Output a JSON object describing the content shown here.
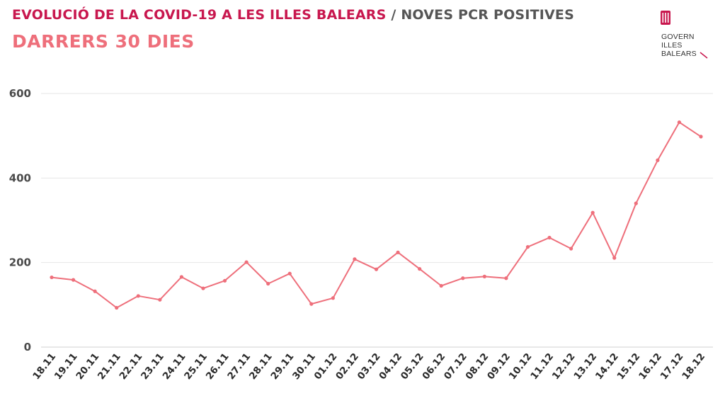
{
  "header": {
    "title_main": "EVOLUCIÓ DE LA COVID-19 A LES ILLES BALEARS",
    "title_sep": "/",
    "title_sub": "NOVES PCR POSITIVES",
    "subtitle": "DARRERS 30 DIES"
  },
  "logo": {
    "line1": "GOVERN",
    "line2": "ILLES",
    "line3": "BALEARS"
  },
  "colors": {
    "title": "#c8174e",
    "subtitle": "#ee6f7b",
    "line": "#ee6f7b",
    "grid": "#e6e6e6"
  },
  "chart_data": {
    "type": "line",
    "title": "",
    "xlabel": "",
    "ylabel": "",
    "ylim": [
      0,
      600
    ],
    "yticks": [
      0,
      200,
      400,
      600
    ],
    "grid": true,
    "categories": [
      "18.11",
      "19.11",
      "20.11",
      "21.11",
      "22.11",
      "23.11",
      "24.11",
      "25.11",
      "26.11",
      "27.11",
      "28.11",
      "29.11",
      "30.11",
      "01.12",
      "02.12",
      "03.12",
      "04.12",
      "05.12",
      "06.12",
      "07.12",
      "08.12",
      "09.12",
      "10.12",
      "11.12",
      "12.12",
      "13.12",
      "14.12",
      "15.12",
      "16.12",
      "17.12",
      "18.12"
    ],
    "series": [
      {
        "values": [
          165,
          159,
          132,
          93,
          121,
          112,
          166,
          139,
          157,
          201,
          150,
          174,
          102,
          116,
          208,
          184,
          224,
          185,
          145,
          163,
          167,
          163,
          237,
          259,
          233,
          318,
          211,
          340,
          442,
          532,
          498
        ]
      }
    ]
  }
}
